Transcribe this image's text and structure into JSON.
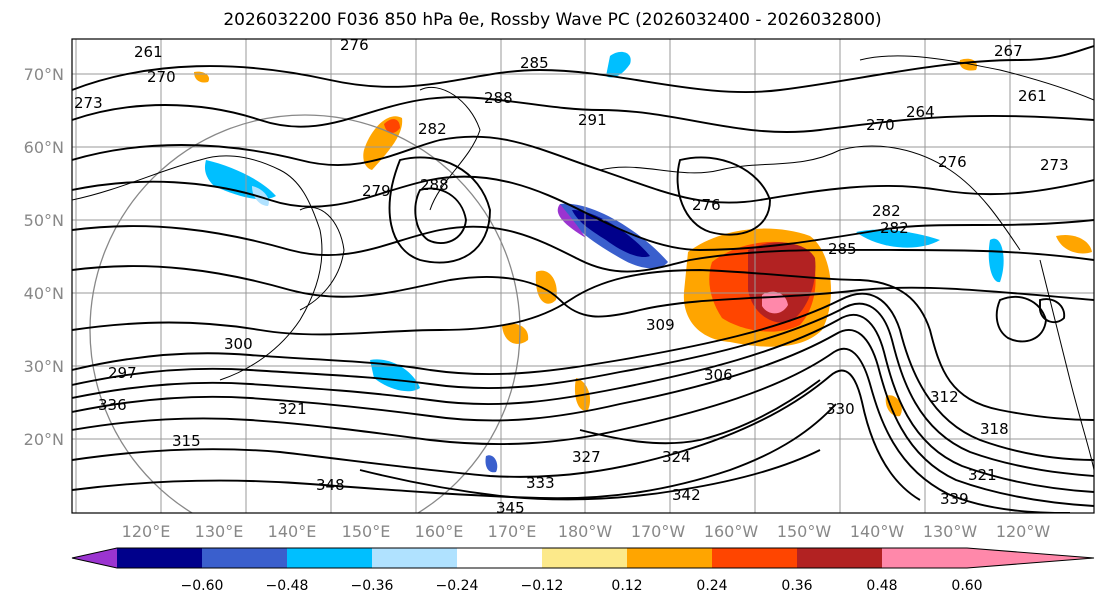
{
  "title": "2026032200 F036 850 hPa θe, Rossby Wave PC (2026032400 - 2026032800)",
  "map": {
    "lat_labels": [
      "70°N",
      "60°N",
      "50°N",
      "40°N",
      "30°N",
      "20°N"
    ],
    "lon_labels": [
      "120°E",
      "130°E",
      "140°E",
      "150°E",
      "160°E",
      "170°E",
      "180°W",
      "170°W",
      "160°W",
      "150°W",
      "140°W",
      "130°W",
      "120°W"
    ],
    "contour_labels": [
      "261",
      "270",
      "273",
      "276",
      "285",
      "288",
      "291",
      "282",
      "276",
      "270",
      "264",
      "267",
      "261",
      "276",
      "273",
      "282",
      "282",
      "285",
      "306",
      "309",
      "312",
      "318",
      "321",
      "327",
      "330",
      "333",
      "336",
      "339",
      "342",
      "345",
      "348",
      "315",
      "324",
      "321",
      "300",
      "297",
      "288",
      "279"
    ]
  },
  "colorbar": {
    "colors": [
      "#9b34d0",
      "#00008b",
      "#3a5fcd",
      "#00bfff",
      "#b0e2ff",
      "#ffffff",
      "#fce98a",
      "#ffa500",
      "#ff4500",
      "#b22222",
      "#ff88aa"
    ],
    "ticks": [
      "−0.60",
      "−0.48",
      "−0.36",
      "−0.24",
      "−0.12",
      "0.12",
      "0.24",
      "0.36",
      "0.48",
      "0.60"
    ]
  }
}
